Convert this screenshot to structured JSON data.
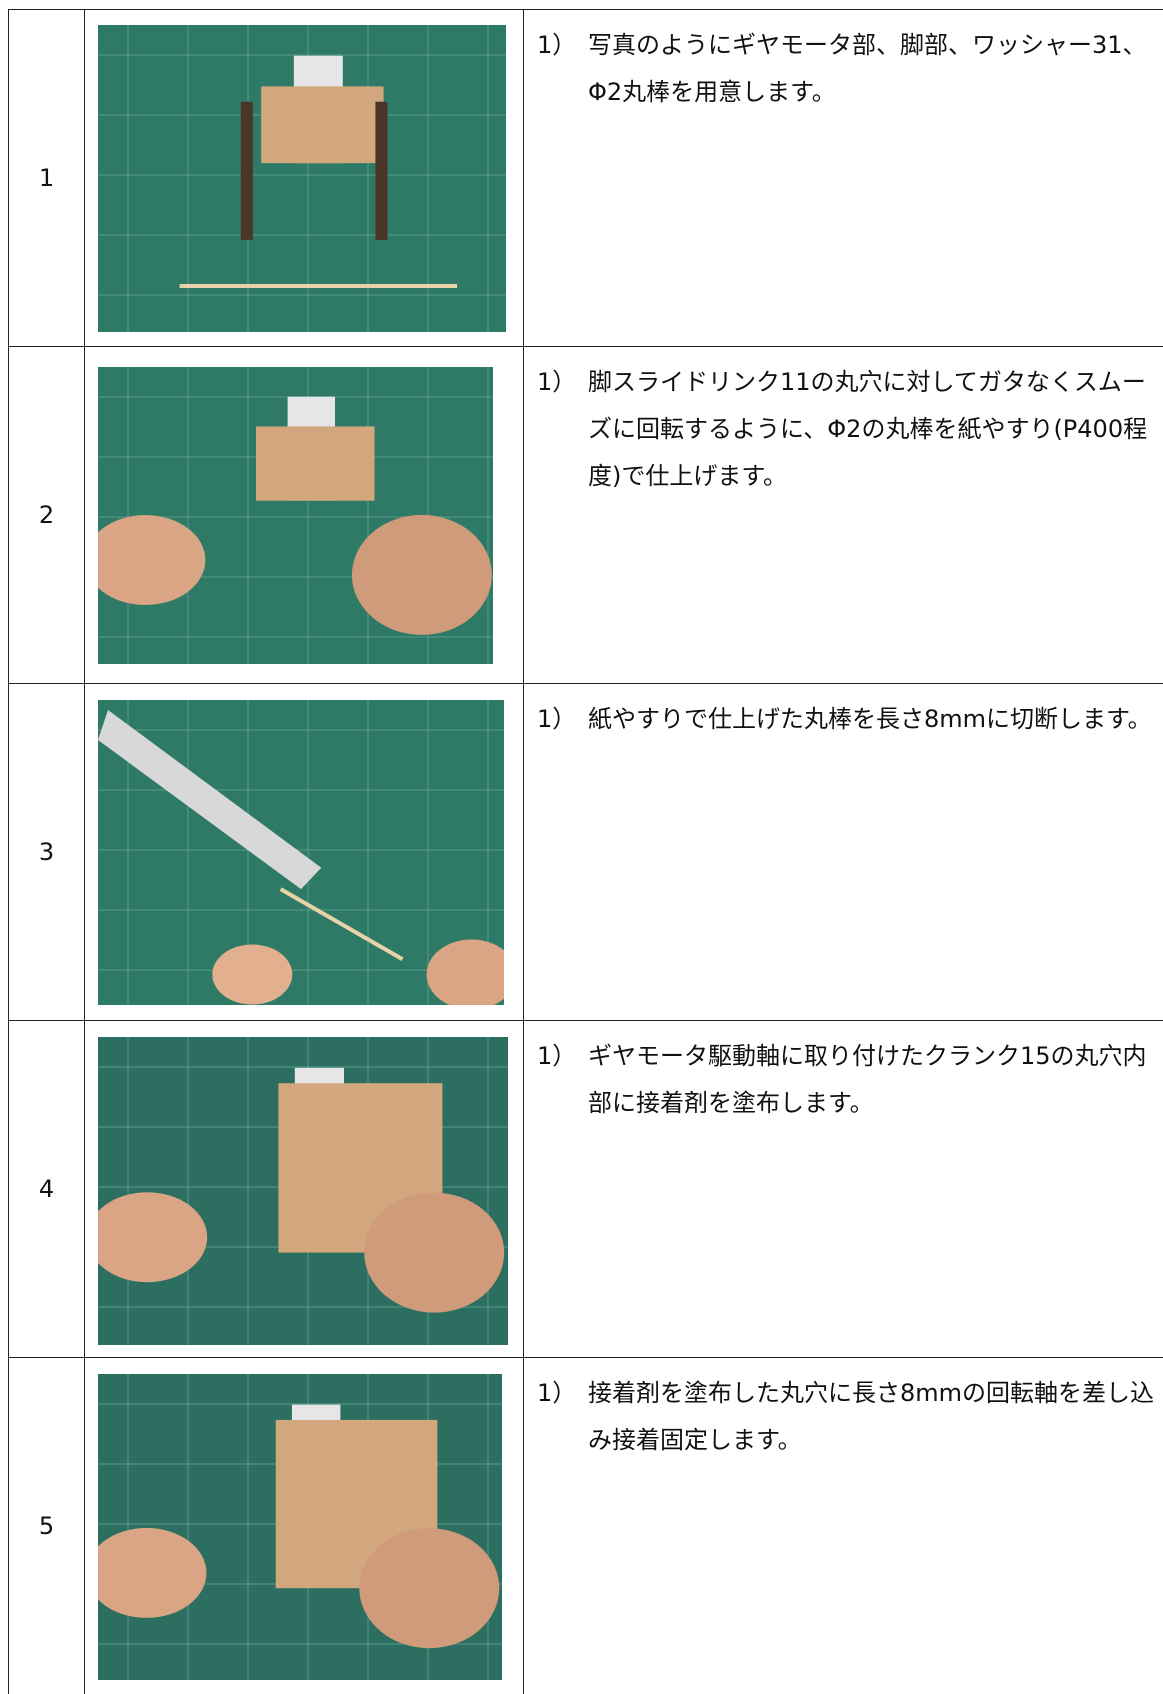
{
  "table": {
    "rows": [
      {
        "number": "1",
        "step": "1）",
        "text": "写真のようにギヤモータ部、脚部、ワッシャー31、Φ2丸棒を用意します。"
      },
      {
        "number": "2",
        "step": "1）",
        "text": "脚スライドリンク11の丸穴に対してガタなくスムーズに回転するように、Φ2の丸棒を紙やすり(P400程度)で仕上げます。"
      },
      {
        "number": "3",
        "step": "1）",
        "text": "紙やすりで仕上げた丸棒を長さ8mmに切断します。"
      },
      {
        "number": "4",
        "step": "1）",
        "text": "ギヤモータ駆動軸に取り付けたクランク15の丸穴内部に接着剤を塗布します。"
      },
      {
        "number": "5",
        "step": "1）",
        "text": "接着剤を塗布した丸穴に長さ8mmの回転軸を差し込み接着固定します。"
      }
    ]
  }
}
